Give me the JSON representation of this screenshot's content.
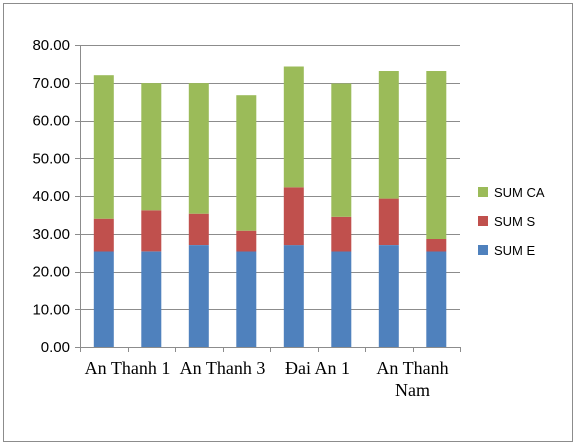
{
  "chart_data": {
    "type": "bar",
    "stacked": true,
    "categories": [
      "An Thanh 1",
      "",
      "An Thanh 3",
      "",
      "Đai An 1",
      "",
      "An Thanh Nam",
      ""
    ],
    "series": [
      {
        "name": "SUM E",
        "color": "#4F81BD",
        "values": [
          25.3,
          25.3,
          27.0,
          25.3,
          27.0,
          25.3,
          27.0,
          25.3
        ]
      },
      {
        "name": "SUM S",
        "color": "#C0504D",
        "values": [
          8.7,
          10.9,
          8.3,
          5.5,
          15.3,
          9.2,
          12.3,
          3.3
        ]
      },
      {
        "name": "SUM CA",
        "color": "#9BBB59",
        "values": [
          38.0,
          33.7,
          34.6,
          35.9,
          32.0,
          35.3,
          33.8,
          44.5
        ]
      }
    ],
    "y_ticks": [
      "0.00",
      "10.00",
      "20.00",
      "30.00",
      "40.00",
      "50.00",
      "60.00",
      "70.00",
      "80.00"
    ],
    "ylim": [
      0,
      80
    ],
    "grid": true,
    "legend_position": "right"
  }
}
